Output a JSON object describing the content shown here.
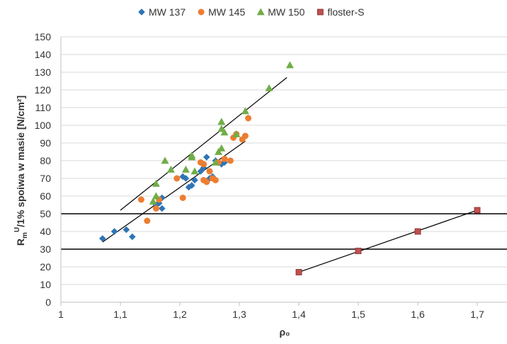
{
  "chart_data": {
    "type": "scatter",
    "title": "",
    "xlabel": "ρ₀",
    "ylabel_parts": {
      "main": "R",
      "sub": "m",
      "sup": "U",
      "rest": "/1% spoiwa w masie [N/cm²]"
    },
    "xlim": [
      1.0,
      1.75
    ],
    "ylim": [
      0,
      150
    ],
    "x_ticks": [
      1.0,
      1.1,
      1.2,
      1.3,
      1.4,
      1.5,
      1.6,
      1.7
    ],
    "x_tick_labels": [
      "1",
      "1,1",
      "1,2",
      "1,3",
      "1,4",
      "1,5",
      "1,6",
      "1,7"
    ],
    "y_ticks": [
      0,
      10,
      20,
      30,
      40,
      50,
      60,
      70,
      80,
      90,
      100,
      110,
      120,
      130,
      140,
      150
    ],
    "y_tick_labels": [
      "0",
      "10",
      "20",
      "30",
      "40",
      "50",
      "60",
      "70",
      "80",
      "90",
      "100",
      "110",
      "120",
      "130",
      "140",
      "150"
    ],
    "grid": "horizontal",
    "legend_position": "top",
    "reference_lines_y": [
      30,
      50
    ],
    "series": [
      {
        "name": "MW 137",
        "marker": "diamond",
        "color": "#2E75B6",
        "points": [
          [
            1.07,
            36
          ],
          [
            1.09,
            40
          ],
          [
            1.11,
            41
          ],
          [
            1.12,
            37
          ],
          [
            1.16,
            55
          ],
          [
            1.165,
            56
          ],
          [
            1.17,
            53
          ],
          [
            1.17,
            59
          ],
          [
            1.205,
            71
          ],
          [
            1.21,
            70
          ],
          [
            1.215,
            65
          ],
          [
            1.22,
            66
          ],
          [
            1.225,
            69
          ],
          [
            1.235,
            74
          ],
          [
            1.24,
            76
          ],
          [
            1.245,
            82
          ],
          [
            1.25,
            70
          ],
          [
            1.255,
            71
          ],
          [
            1.26,
            80
          ],
          [
            1.265,
            79
          ],
          [
            1.27,
            78
          ],
          [
            1.275,
            79
          ]
        ]
      },
      {
        "name": "MW 145",
        "marker": "circle",
        "color": "#ED7D31",
        "points": [
          [
            1.135,
            58
          ],
          [
            1.145,
            46
          ],
          [
            1.16,
            53
          ],
          [
            1.165,
            58
          ],
          [
            1.195,
            70
          ],
          [
            1.205,
            59
          ],
          [
            1.235,
            79
          ],
          [
            1.24,
            78
          ],
          [
            1.24,
            69
          ],
          [
            1.245,
            68
          ],
          [
            1.25,
            74
          ],
          [
            1.255,
            70
          ],
          [
            1.26,
            69
          ],
          [
            1.265,
            79
          ],
          [
            1.275,
            81
          ],
          [
            1.285,
            80
          ],
          [
            1.29,
            93
          ],
          [
            1.295,
            95
          ],
          [
            1.305,
            92
          ],
          [
            1.31,
            94
          ],
          [
            1.315,
            104
          ]
        ]
      },
      {
        "name": "MW 150",
        "marker": "triangle",
        "color": "#70AD47",
        "points": [
          [
            1.155,
            57
          ],
          [
            1.16,
            60
          ],
          [
            1.16,
            67
          ],
          [
            1.175,
            80
          ],
          [
            1.185,
            75
          ],
          [
            1.21,
            75
          ],
          [
            1.22,
            82
          ],
          [
            1.22,
            83
          ],
          [
            1.225,
            74
          ],
          [
            1.26,
            79
          ],
          [
            1.265,
            85
          ],
          [
            1.27,
            87
          ],
          [
            1.27,
            98
          ],
          [
            1.27,
            102
          ],
          [
            1.275,
            96
          ],
          [
            1.295,
            95
          ],
          [
            1.31,
            108
          ],
          [
            1.35,
            121
          ],
          [
            1.385,
            134
          ]
        ]
      },
      {
        "name": "floster-S",
        "marker": "square",
        "color": "#C0504D",
        "points": [
          [
            1.4,
            17
          ],
          [
            1.5,
            29
          ],
          [
            1.6,
            40
          ],
          [
            1.7,
            52
          ]
        ]
      }
    ],
    "trendlines": [
      {
        "series": "MW 150",
        "from": [
          1.1,
          52
        ],
        "to": [
          1.38,
          127
        ]
      },
      {
        "series": "MW 137",
        "from": [
          1.07,
          34
        ],
        "to": [
          1.31,
          91
        ]
      },
      {
        "series": "floster-S",
        "from": [
          1.4,
          17
        ],
        "to": [
          1.7,
          52
        ]
      }
    ]
  }
}
